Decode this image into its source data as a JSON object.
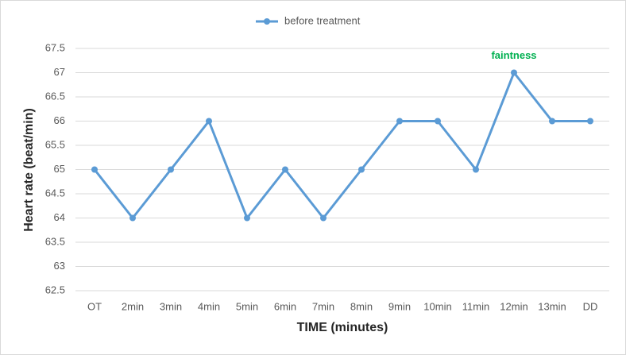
{
  "chart_data": {
    "type": "line",
    "x_label": "TIME (minutes)",
    "y_label": "Heart rate (beat/min)",
    "categories": [
      "OT",
      "2min",
      "3min",
      "4min",
      "5min",
      "6min",
      "7min",
      "8min",
      "9min",
      "10min",
      "11min",
      "12min",
      "13min",
      "DD"
    ],
    "series": [
      {
        "name": "before treatment",
        "color": "#5b9bd5",
        "values": [
          65,
          64,
          65,
          66,
          64,
          65,
          64,
          65,
          66,
          66,
          65,
          67,
          66,
          66
        ]
      }
    ],
    "ylim": [
      62.5,
      67.5
    ],
    "yticks": [
      62.5,
      63,
      63.5,
      64,
      64.5,
      65,
      65.5,
      66,
      66.5,
      67,
      67.5
    ],
    "grid": true,
    "legend": "top",
    "annotations": [
      {
        "text": "faintness",
        "x": "12min",
        "color": "#00b050"
      }
    ]
  }
}
